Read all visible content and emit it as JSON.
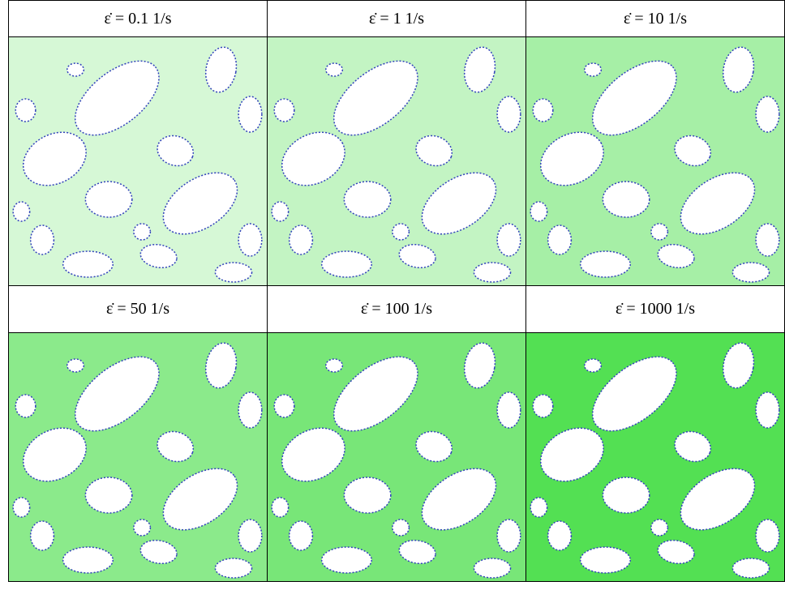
{
  "table": {
    "rows": [
      [
        "ε̇ = 0.1 1/s",
        "ε̇ = 1 1/s",
        "ε̇ = 10 1/s"
      ],
      [
        "ε̇ = 50 1/s",
        "ε̇ = 100 1/s",
        "ε̇ = 1000 1/s"
      ]
    ]
  }
}
